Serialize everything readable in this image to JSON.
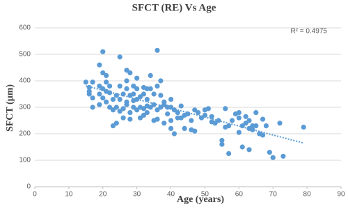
{
  "chart_data": {
    "type": "scatter",
    "title": "SFCT (RE) Vs  Age",
    "annotation": "R² = 0.4975",
    "x_label": "Age (years)",
    "y_label": "SFCT (µm)",
    "xlim": [
      0,
      90
    ],
    "xticks": [
      0,
      10,
      20,
      30,
      40,
      50,
      60,
      70,
      80,
      90
    ],
    "ylim": [
      0,
      600
    ],
    "yticks": [
      0,
      100,
      200,
      300,
      400,
      500,
      600
    ],
    "grid": true,
    "color": "#5b9bd5",
    "x": [
      15,
      16,
      16,
      17,
      17,
      17,
      16,
      19,
      19,
      19,
      20,
      20,
      20,
      20,
      19,
      21,
      21,
      21,
      21,
      22,
      22,
      22,
      23,
      23,
      23,
      24,
      24,
      24,
      25,
      25,
      25,
      25,
      26,
      26,
      26,
      27,
      27,
      27,
      27,
      27,
      28,
      28,
      28,
      28,
      29,
      29,
      29,
      29,
      30,
      30,
      30,
      30,
      31,
      31,
      31,
      32,
      32,
      32,
      32,
      33,
      33,
      33,
      33,
      34,
      34,
      34,
      35,
      35,
      35,
      36,
      36,
      36,
      36,
      37,
      37,
      37,
      38,
      38,
      38,
      39,
      39,
      40,
      40,
      40,
      40,
      41,
      41,
      42,
      42,
      43,
      43,
      44,
      44,
      45,
      46,
      46,
      47,
      47,
      48,
      49,
      50,
      50,
      51,
      52,
      52,
      53,
      54,
      55,
      55,
      56,
      56,
      57,
      57,
      58,
      59,
      60,
      60,
      60,
      61,
      61,
      62,
      62,
      63,
      63,
      63,
      64,
      64,
      65,
      65,
      66,
      67,
      67,
      68,
      69,
      70,
      72,
      73,
      79
    ],
    "values": [
      395,
      360,
      350,
      335,
      395,
      300,
      375,
      460,
      380,
      350,
      510,
      430,
      370,
      335,
      310,
      420,
      395,
      360,
      320,
      300,
      355,
      380,
      290,
      230,
      330,
      345,
      300,
      240,
      490,
      380,
      330,
      285,
      350,
      260,
      295,
      440,
      400,
      370,
      320,
      310,
      430,
      345,
      255,
      280,
      380,
      325,
      300,
      350,
      410,
      370,
      290,
      330,
      340,
      300,
      260,
      375,
      350,
      270,
      295,
      370,
      330,
      305,
      280,
      420,
      370,
      300,
      350,
      310,
      250,
      515,
      380,
      290,
      255,
      345,
      400,
      300,
      320,
      310,
      240,
      300,
      275,
      220,
      300,
      330,
      250,
      200,
      290,
      280,
      260,
      260,
      305,
      220,
      270,
      275,
      250,
      215,
      290,
      210,
      280,
      260,
      290,
      270,
      295,
      265,
      245,
      240,
      250,
      175,
      160,
      225,
      295,
      125,
      230,
      250,
      275,
      280,
      260,
      205,
      150,
      230,
      265,
      240,
      250,
      140,
      220,
      215,
      230,
      280,
      230,
      200,
      255,
      195,
      230,
      130,
      110,
      240,
      115,
      225
    ],
    "trendline": {
      "x": [
        15,
        79
      ],
      "values": [
        381,
        165
      ]
    }
  }
}
